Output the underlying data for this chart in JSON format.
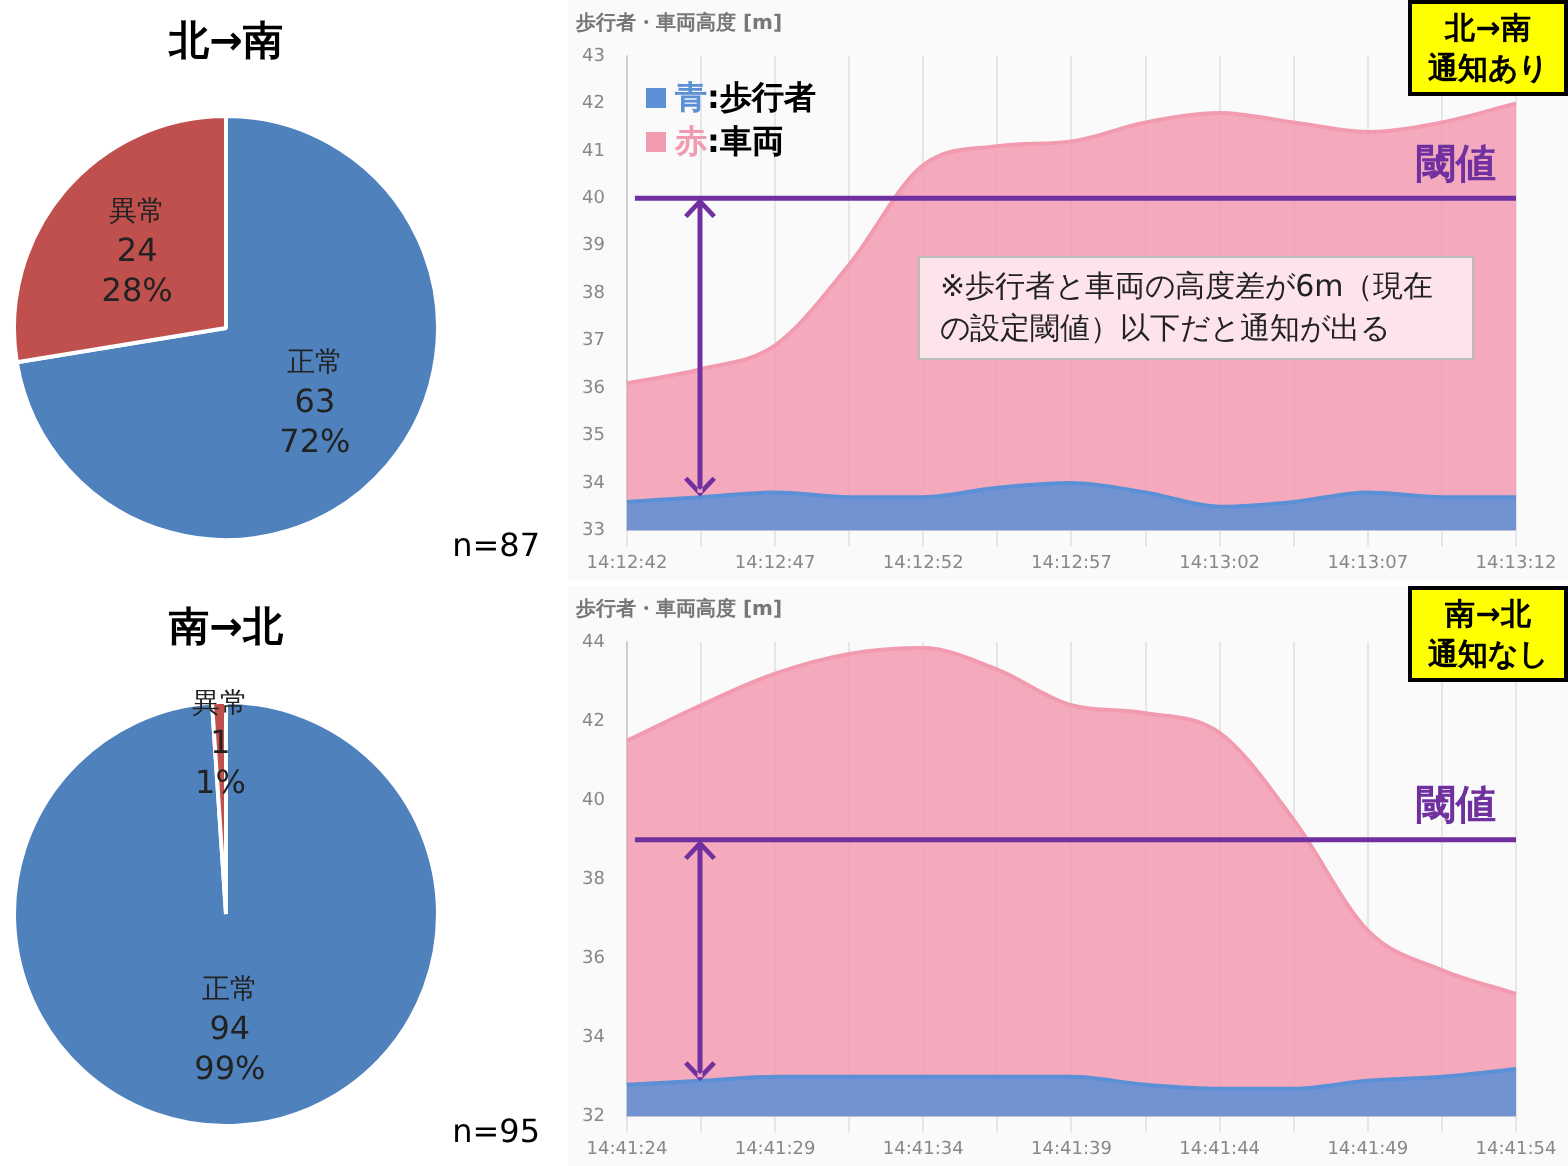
{
  "chart_data": [
    {
      "type": "pie",
      "title": "北→南",
      "categories": [
        "正常",
        "異常"
      ],
      "values": [
        63,
        24
      ],
      "colors": [
        "#4f81bd",
        "#c0504d"
      ],
      "value_labels": [
        "63\n72%",
        "24\n28%"
      ],
      "annotations": [
        "n=87"
      ]
    },
    {
      "type": "area",
      "title": "歩行者・車両高度 [m]",
      "categories": [
        "14:12:42",
        null,
        "14:12:47",
        null,
        "14:12:52",
        null,
        "14:12:57",
        null,
        "14:13:02",
        null,
        "14:13:07",
        null,
        "14:13:12"
      ],
      "series": [
        {
          "name": "青:歩行者",
          "color": "#5b8fd6",
          "values": [
            33.6,
            33.7,
            33.8,
            33.7,
            33.7,
            33.9,
            34.0,
            33.8,
            33.5,
            33.6,
            33.8,
            33.7,
            33.7
          ]
        },
        {
          "name": "赤:車両",
          "color": "#f29bb0",
          "values": [
            36.1,
            36.4,
            36.9,
            38.6,
            40.7,
            41.1,
            41.2,
            41.6,
            41.8,
            41.6,
            41.4,
            41.6,
            42.0
          ]
        }
      ],
      "ylim": [
        33,
        43
      ],
      "yticks": [
        33,
        34,
        35,
        36,
        37,
        38,
        39,
        40,
        41,
        42,
        43
      ],
      "grid": "x",
      "legend": "top left",
      "ref_lines": [
        {
          "axis": "y",
          "value": 40,
          "label": "閾値",
          "color": "#7030a0"
        }
      ],
      "annotations": [
        "北→南",
        "通知あり",
        "※歩行者と車両の高度差が6m（現在の設定閾値）以下だと通知が出る"
      ]
    },
    {
      "type": "pie",
      "title": "南→北",
      "categories": [
        "正常",
        "異常"
      ],
      "values": [
        94,
        1
      ],
      "colors": [
        "#4f81bd",
        "#c0504d"
      ],
      "value_labels": [
        "94\n99%",
        "1\n1%"
      ],
      "annotations": [
        "n=95"
      ]
    },
    {
      "type": "area",
      "title": "歩行者・車両高度 [m]",
      "categories": [
        "14:41:24",
        null,
        "14:41:29",
        null,
        "14:41:34",
        null,
        "14:41:39",
        null,
        "14:41:44",
        null,
        "14:41:49",
        null,
        "14:41:54"
      ],
      "series": [
        {
          "color": "#5b8fd6",
          "values": [
            32.8,
            32.9,
            33.0,
            33.0,
            33.0,
            33.0,
            33.0,
            32.8,
            32.7,
            32.7,
            32.9,
            33.0,
            33.2
          ]
        },
        {
          "color": "#f29bb0",
          "values": [
            41.5,
            42.4,
            43.2,
            43.7,
            43.85,
            43.3,
            42.4,
            42.2,
            41.7,
            39.5,
            36.7,
            35.7,
            35.1
          ]
        }
      ],
      "ylim": [
        32,
        44
      ],
      "yticks": [
        32,
        34,
        36,
        38,
        40,
        42,
        44
      ],
      "grid": "x",
      "ref_lines": [
        {
          "axis": "y",
          "value": 39,
          "label": "閾値",
          "color": "#7030a0"
        }
      ],
      "annotations": [
        "南→北",
        "通知なし"
      ]
    }
  ]
}
